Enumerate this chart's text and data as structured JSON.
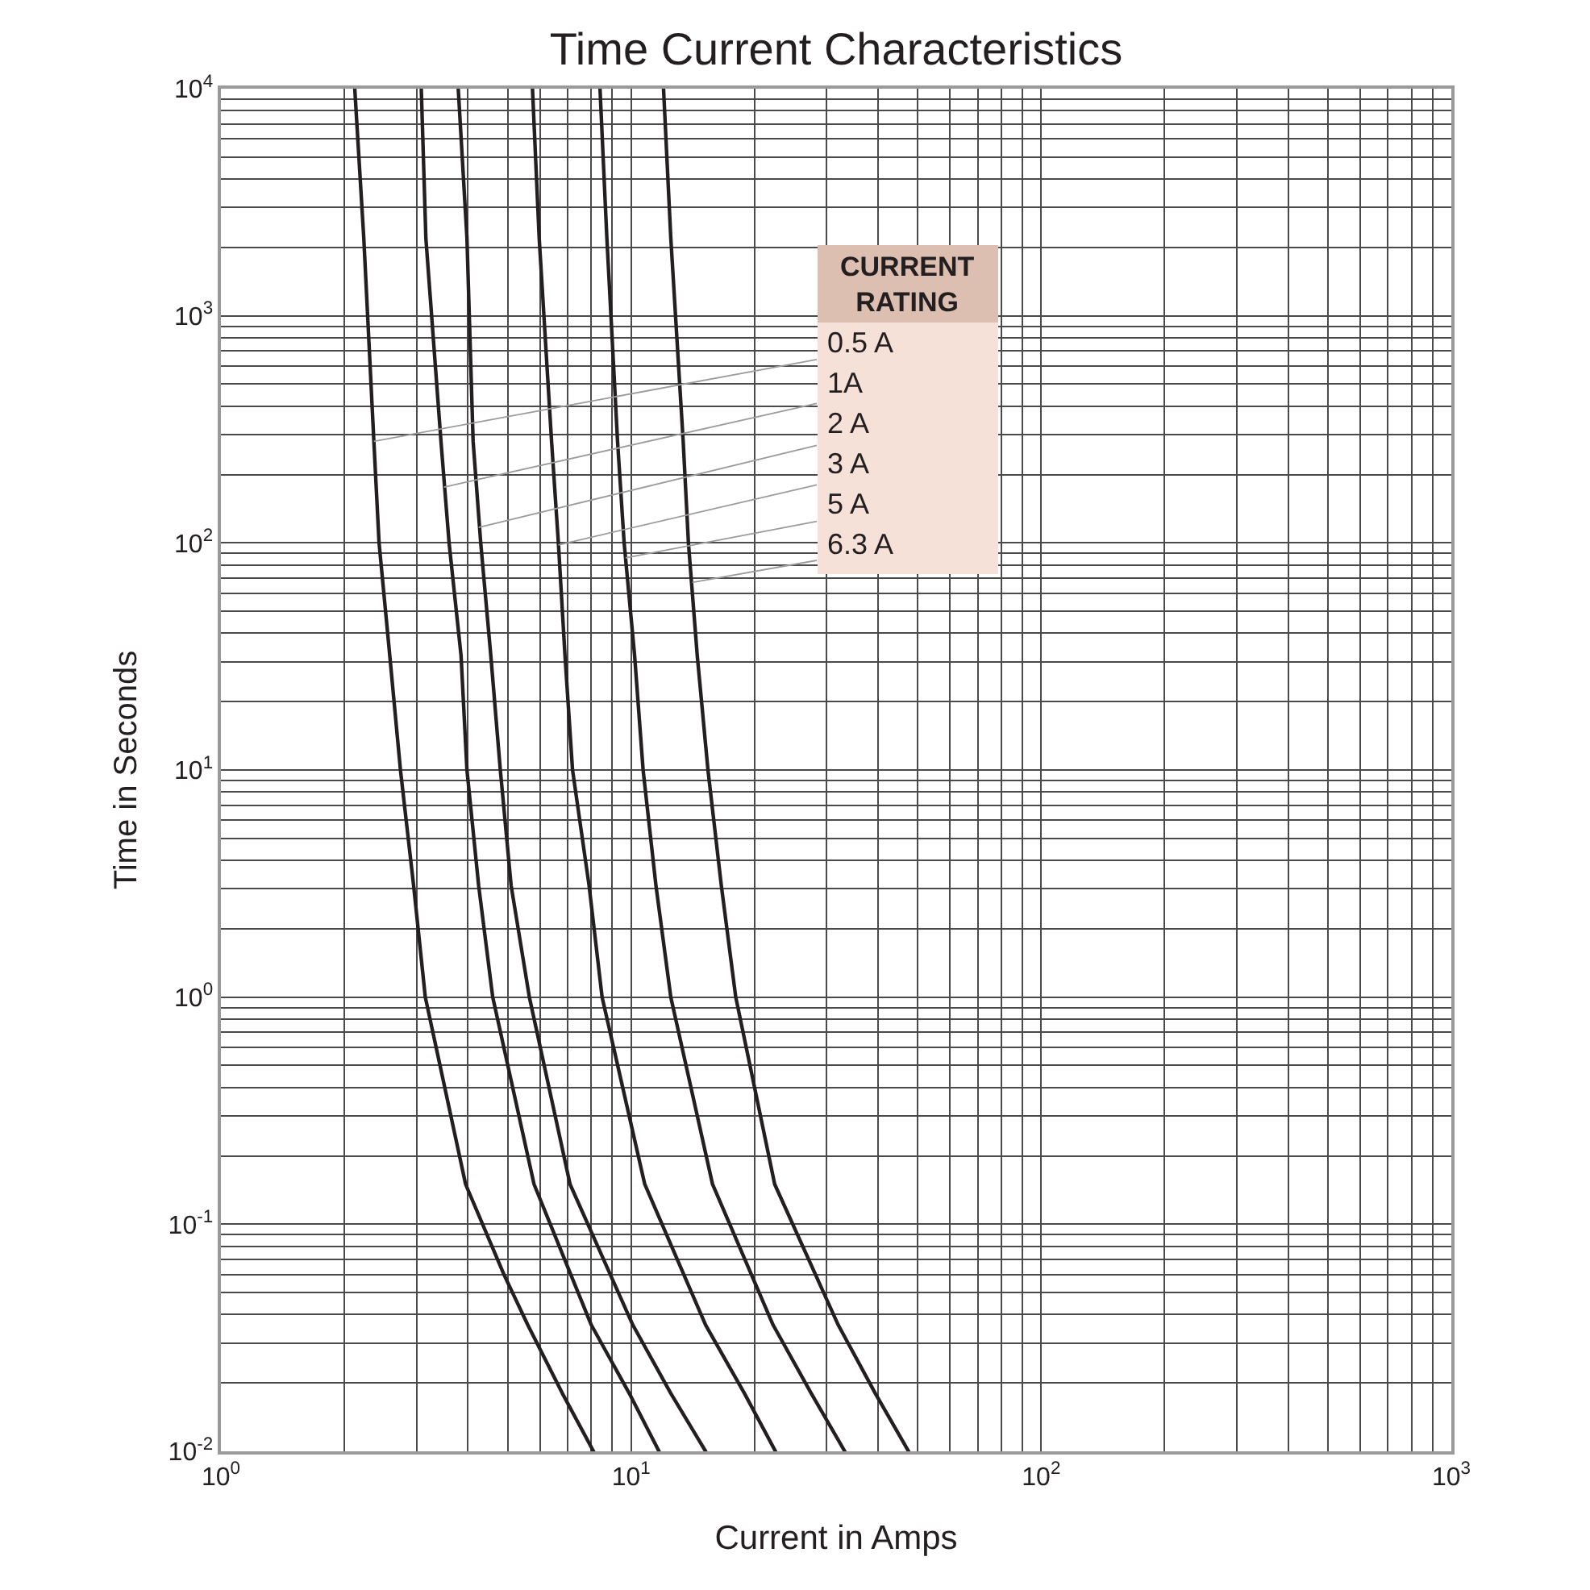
{
  "chart_data": {
    "type": "line",
    "title": "Time Current Characteristics",
    "xlabel": "Current in Amps",
    "ylabel": "Time in Seconds",
    "log": "xy",
    "grid": true,
    "xlim": [
      1,
      1000
    ],
    "ylim": [
      0.01,
      10000
    ],
    "xticks": [
      {
        "value": 1,
        "label": "10$^{0}$"
      },
      {
        "value": 2,
        "label": null
      },
      {
        "value": 3,
        "label": null
      },
      {
        "value": 4,
        "label": null
      },
      {
        "value": 5,
        "label": null
      },
      {
        "value": 6,
        "label": null
      },
      {
        "value": 7,
        "label": null
      },
      {
        "value": 8,
        "label": null
      },
      {
        "value": 9,
        "label": null
      },
      {
        "value": 10,
        "label": "10$^{1}$"
      },
      {
        "value": 20,
        "label": null
      },
      {
        "value": 30,
        "label": null
      },
      {
        "value": 40,
        "label": null
      },
      {
        "value": 50,
        "label": null
      },
      {
        "value": 60,
        "label": null
      },
      {
        "value": 70,
        "label": null
      },
      {
        "value": 80,
        "label": null
      },
      {
        "value": 90,
        "label": null
      },
      {
        "value": 100,
        "label": "10$^{2}$"
      },
      {
        "value": 200,
        "label": null
      },
      {
        "value": 300,
        "label": null
      },
      {
        "value": 400,
        "label": null
      },
      {
        "value": 500,
        "label": null
      },
      {
        "value": 600,
        "label": null
      },
      {
        "value": 700,
        "label": null
      },
      {
        "value": 800,
        "label": null
      },
      {
        "value": 900,
        "label": null
      },
      {
        "value": 1000,
        "label": "10$^{3}$"
      }
    ],
    "yticks": [
      {
        "value": 0.01,
        "label": "10$^{-2}$"
      },
      {
        "value": 0.02,
        "label": null
      },
      {
        "value": 0.03,
        "label": null
      },
      {
        "value": 0.04,
        "label": null
      },
      {
        "value": 0.05,
        "label": null
      },
      {
        "value": 0.06,
        "label": null
      },
      {
        "value": 0.07,
        "label": null
      },
      {
        "value": 0.08,
        "label": null
      },
      {
        "value": 0.09,
        "label": null
      },
      {
        "value": 0.1,
        "label": "10$^{-1}$"
      },
      {
        "value": 0.2,
        "label": null
      },
      {
        "value": 0.3,
        "label": null
      },
      {
        "value": 0.4,
        "label": null
      },
      {
        "value": 0.5,
        "label": null
      },
      {
        "value": 0.6,
        "label": null
      },
      {
        "value": 0.7,
        "label": null
      },
      {
        "value": 0.8,
        "label": null
      },
      {
        "value": 0.9,
        "label": null
      },
      {
        "value": 1,
        "label": "10$^{0}$"
      },
      {
        "value": 2,
        "label": null
      },
      {
        "value": 3,
        "label": null
      },
      {
        "value": 4,
        "label": null
      },
      {
        "value": 5,
        "label": null
      },
      {
        "value": 6,
        "label": null
      },
      {
        "value": 7,
        "label": null
      },
      {
        "value": 8,
        "label": null
      },
      {
        "value": 9,
        "label": null
      },
      {
        "value": 10,
        "label": "10$^{1}$"
      },
      {
        "value": 20,
        "label": null
      },
      {
        "value": 30,
        "label": null
      },
      {
        "value": 40,
        "label": null
      },
      {
        "value": 50,
        "label": null
      },
      {
        "value": 60,
        "label": null
      },
      {
        "value": 70,
        "label": null
      },
      {
        "value": 80,
        "label": null
      },
      {
        "value": 90,
        "label": null
      },
      {
        "value": 100,
        "label": "10$^{2}$"
      },
      {
        "value": 200,
        "label": null
      },
      {
        "value": 300,
        "label": null
      },
      {
        "value": 400,
        "label": null
      },
      {
        "value": 500,
        "label": null
      },
      {
        "value": 600,
        "label": null
      },
      {
        "value": 700,
        "label": null
      },
      {
        "value": 800,
        "label": null
      },
      {
        "value": 900,
        "label": null
      },
      {
        "value": 1000,
        "label": "10$^{3}$"
      },
      {
        "value": 2000,
        "label": null
      },
      {
        "value": 3000,
        "label": null
      },
      {
        "value": 4000,
        "label": null
      },
      {
        "value": 5000,
        "label": null
      },
      {
        "value": 6000,
        "label": null
      },
      {
        "value": 7000,
        "label": null
      },
      {
        "value": 8000,
        "label": null
      },
      {
        "value": 9000,
        "label": null
      },
      {
        "value": 10000,
        "label": "10$^{4}$"
      }
    ],
    "series": [
      {
        "color": "#231f20",
        "x": [
          2.12,
          2.23,
          2.36,
          2.43,
          2.58,
          2.74,
          2.95,
          3.15,
          3.95,
          4.9,
          5.6,
          6.8,
          8.1
        ],
        "values": [
          10000,
          2200,
          280,
          100,
          32,
          10,
          3.1,
          1.0,
          0.15,
          0.06,
          0.036,
          0.018,
          0.01
        ]
      },
      {
        "color": "#231f20",
        "x": [
          3.08,
          3.16,
          3.44,
          3.6,
          3.85,
          3.98,
          4.25,
          4.6,
          5.8,
          8.0,
          9.9,
          11.7
        ],
        "values": [
          10000,
          2200,
          280,
          100,
          32,
          10,
          3.1,
          1.0,
          0.15,
          0.036,
          0.018,
          0.01
        ]
      },
      {
        "color": "#231f20",
        "x": [
          3.79,
          3.98,
          4.12,
          4.3,
          4.55,
          4.8,
          5.1,
          5.65,
          7.1,
          10.1,
          12.5,
          15.2
        ],
        "values": [
          10000,
          2200,
          280,
          100,
          32,
          10,
          3.1,
          1.0,
          0.15,
          0.036,
          0.018,
          0.01
        ]
      },
      {
        "color": "#231f20",
        "x": [
          5.75,
          5.97,
          6.4,
          6.65,
          6.9,
          7.2,
          7.9,
          8.5,
          10.8,
          15.2,
          18.9,
          22.5
        ],
        "values": [
          10000,
          2200,
          280,
          100,
          32,
          10,
          3.1,
          1.0,
          0.15,
          0.036,
          0.018,
          0.01
        ]
      },
      {
        "color": "#231f20",
        "x": [
          8.4,
          8.73,
          9.27,
          9.62,
          10.2,
          10.7,
          11.5,
          12.5,
          15.8,
          22.2,
          27.5,
          33.2
        ],
        "values": [
          10000,
          2200,
          280,
          100,
          32,
          10,
          3.1,
          1.0,
          0.15,
          0.036,
          0.018,
          0.01
        ]
      },
      {
        "color": "#231f20",
        "x": [
          12.0,
          12.5,
          13.4,
          13.8,
          14.5,
          15.4,
          16.6,
          18.0,
          22.4,
          32.0,
          39.4,
          47.5
        ],
        "values": [
          10000,
          2200,
          280,
          100,
          32,
          10,
          3.1,
          1.0,
          0.15,
          0.036,
          0.018,
          0.01
        ]
      }
    ],
    "annotations": [
      "CURRENT\nRATING",
      {
        "text": "0.5 A",
        "x": 2.36,
        "y": 280
      },
      {
        "text": "1A",
        "x": 3.5,
        "y": 176
      },
      {
        "text": "2 A",
        "x": 4.25,
        "y": 117
      },
      {
        "text": "3 A",
        "x": 6.65,
        "y": 98
      },
      {
        "text": "5 A",
        "x": 9.7,
        "y": 86
      },
      {
        "text": "6.3 A",
        "x": 14.1,
        "y": 67
      }
    ]
  }
}
